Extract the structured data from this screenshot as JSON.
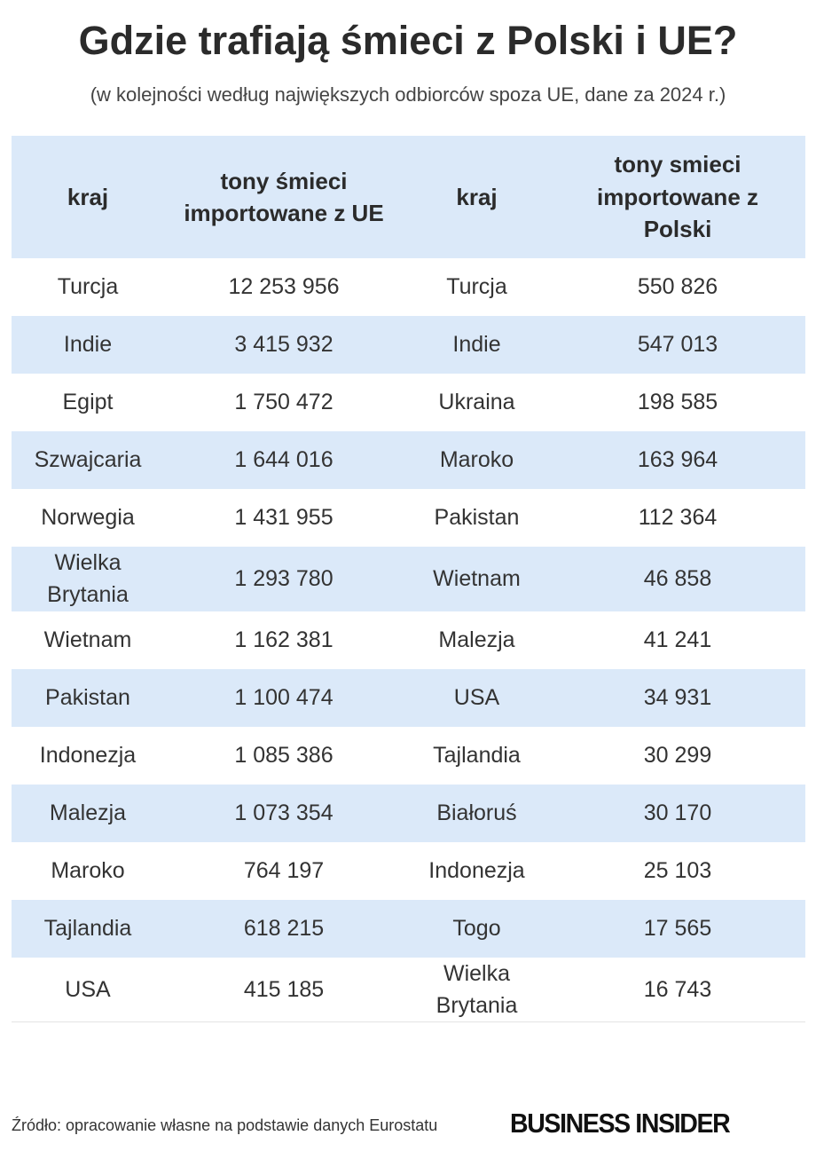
{
  "header": {
    "title": "Gdzie trafiają śmieci z Polski i UE?",
    "subtitle": "(w kolejności według największych odbiorców spoza UE, dane za 2024 r.)"
  },
  "table": {
    "columns": [
      "kraj",
      "tony śmieci importowane z UE",
      "kraj",
      "tony smieci importowane z Polski"
    ],
    "rows": [
      [
        "Turcja",
        "12 253 956",
        "Turcja",
        "550 826"
      ],
      [
        "Indie",
        "3 415 932",
        "Indie",
        "547 013"
      ],
      [
        "Egipt",
        "1 750 472",
        "Ukraina",
        "198 585"
      ],
      [
        "Szwajcaria",
        "1 644 016",
        "Maroko",
        "163 964"
      ],
      [
        "Norwegia",
        "1 431 955",
        "Pakistan",
        "112 364"
      ],
      [
        "Wielka Brytania",
        "1 293 780",
        "Wietnam",
        "46 858"
      ],
      [
        "Wietnam",
        "1 162 381",
        "Malezja",
        "41 241"
      ],
      [
        "Pakistan",
        "1 100 474",
        "USA",
        "34 931"
      ],
      [
        "Indonezja",
        "1 085 386",
        "Tajlandia",
        "30 299"
      ],
      [
        "Malezja",
        "1 073 354",
        "Białoruś",
        "30 170"
      ],
      [
        "Maroko",
        "764 197",
        "Indonezja",
        "25 103"
      ],
      [
        "Tajlandia",
        "618 215",
        "Togo",
        "17 565"
      ],
      [
        "USA",
        "415 185",
        "Wielka Brytania",
        "16 743"
      ]
    ]
  },
  "footer": {
    "source": "Źródło: opracowanie własne na podstawie danych Eurostatu",
    "logo": "BUSINESS INSIDER"
  }
}
